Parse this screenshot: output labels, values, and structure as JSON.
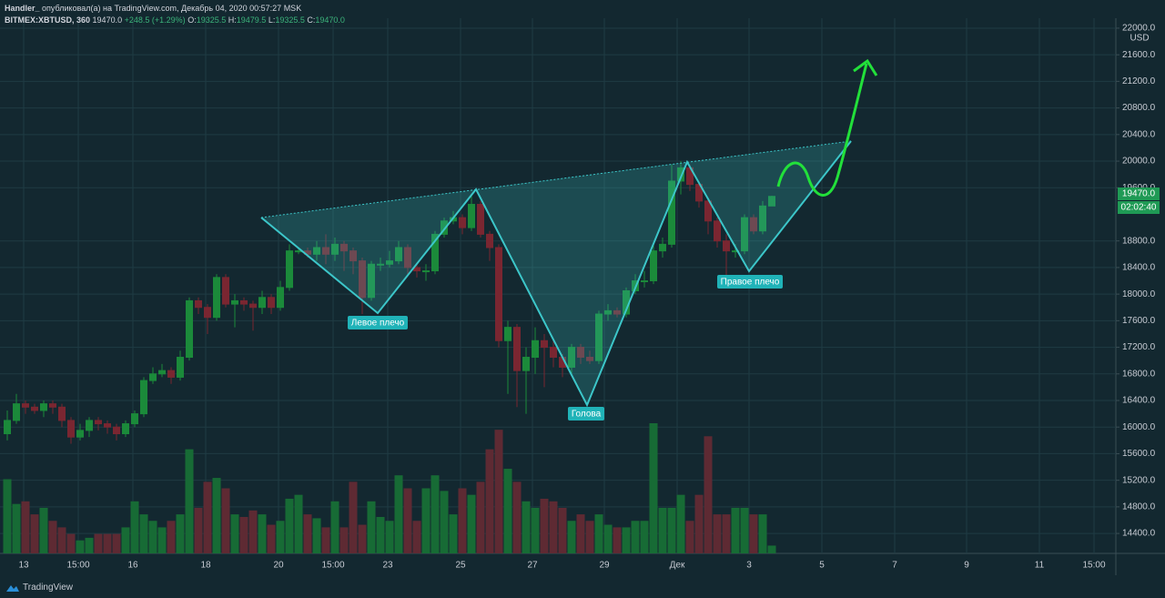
{
  "header": {
    "author": "Handler_",
    "published": "опубликовал(а) на TradingView.com, Декабрь 04, 2020 00:57:27 MSK",
    "symbol": "BITMEX:XBTUSD, 360",
    "last": "19470.0",
    "change": "+248.5 (+1.29%)",
    "ohlc": [
      {
        "label": "O:",
        "value": "19325.5"
      },
      {
        "label": "H:",
        "value": "19479.5"
      },
      {
        "label": "L:",
        "value": "19325.5"
      },
      {
        "label": "C:",
        "value": "19470.0"
      }
    ]
  },
  "footer": {
    "brand": "TradingView"
  },
  "chart_data": {
    "type": "candlestick",
    "currency": "USD",
    "price_tag": "19470.0",
    "countdown": "02:02:40",
    "annotations": [
      "Левое плечо",
      "Голова",
      "Правое плечо"
    ],
    "up_color": "#1b8a3a",
    "down_color": "#7a2631",
    "volume_up_color": "#176b35",
    "volume_down_color": "#5e2a33",
    "ylim": [
      14100,
      22150
    ],
    "xlim": [
      -0.8,
      121.8
    ],
    "yticks": [
      {
        "value": 22000,
        "label": "22000.0"
      },
      {
        "value": 21600,
        "label": "21600.0"
      },
      {
        "value": 21200,
        "label": "21200.0"
      },
      {
        "value": 20800,
        "label": "20800.0"
      },
      {
        "value": 20400,
        "label": "20400.0"
      },
      {
        "value": 20000,
        "label": "20000.0"
      },
      {
        "value": 19600,
        "label": "19600.0"
      },
      {
        "value": 18800,
        "label": "18800.0"
      },
      {
        "value": 18400,
        "label": "18400.0"
      },
      {
        "value": 18000,
        "label": "18000.0"
      },
      {
        "value": 17600,
        "label": "17600.0"
      },
      {
        "value": 17200,
        "label": "17200.0"
      },
      {
        "value": 16800,
        "label": "16800.0"
      },
      {
        "value": 16400,
        "label": "16400.0"
      },
      {
        "value": 16000,
        "label": "16000.0"
      },
      {
        "value": 15600,
        "label": "15600.0"
      },
      {
        "value": 15200,
        "label": "15200.0"
      },
      {
        "value": 14800,
        "label": "14800.0"
      },
      {
        "value": 14400,
        "label": "14400.0"
      }
    ],
    "xticks": [
      {
        "value": 1.8,
        "label": "13"
      },
      {
        "value": 7.8,
        "label": "15:00"
      },
      {
        "value": 13.8,
        "label": "16"
      },
      {
        "value": 21.8,
        "label": "18"
      },
      {
        "value": 29.8,
        "label": "20"
      },
      {
        "value": 35.8,
        "label": "15:00"
      },
      {
        "value": 41.8,
        "label": "23"
      },
      {
        "value": 49.8,
        "label": "25"
      },
      {
        "value": 57.7,
        "label": "27"
      },
      {
        "value": 65.6,
        "label": "29"
      },
      {
        "value": 73.6,
        "label": "Дек"
      },
      {
        "value": 81.5,
        "label": "3"
      },
      {
        "value": 89.5,
        "label": "5"
      },
      {
        "value": 97.5,
        "label": "7"
      },
      {
        "value": 105.4,
        "label": "9"
      },
      {
        "value": 113.4,
        "label": "11"
      },
      {
        "value": 119.4,
        "label": "15:00"
      }
    ],
    "open": [
      15900,
      16100,
      16350,
      16300,
      16250,
      16350,
      16300,
      16100,
      15850,
      15950,
      16100,
      16050,
      16000,
      15900,
      16050,
      16200,
      16700,
      16800,
      16850,
      16750,
      17050,
      17900,
      17800,
      17650,
      18250,
      17850,
      17900,
      17850,
      17800,
      17950,
      17800,
      18100,
      18650,
      18650,
      18600,
      18700,
      18600,
      18750,
      18650,
      18500,
      17950,
      18450,
      18450,
      18500,
      18700,
      18400,
      18350,
      18350,
      18900,
      19100,
      19150,
      19000,
      19350,
      18900,
      18700,
      17300,
      17500,
      16850,
      17050,
      17300,
      17200,
      17050,
      16900,
      17200,
      17050,
      17000,
      17700,
      17750,
      17700,
      18050,
      18200,
      18200,
      18650,
      18750,
      19700,
      19900,
      19650,
      19400,
      19100,
      18800,
      18650,
      18650,
      19150,
      18950,
      19325.5
    ],
    "high": [
      16250,
      16500,
      16400,
      16350,
      16400,
      16400,
      16350,
      16150,
      16050,
      16150,
      16150,
      16100,
      16050,
      16100,
      16250,
      16750,
      16900,
      16950,
      16900,
      17150,
      17950,
      17950,
      17850,
      18300,
      18300,
      18000,
      17950,
      17900,
      18050,
      18000,
      18200,
      18750,
      18700,
      18700,
      18800,
      18900,
      18850,
      18800,
      18700,
      18550,
      18500,
      18550,
      18650,
      18800,
      18750,
      18450,
      18450,
      18950,
      19150,
      19250,
      19200,
      19500,
      19400,
      18950,
      18750,
      17600,
      17550,
      17200,
      17500,
      17400,
      17300,
      17100,
      17250,
      17250,
      17150,
      17750,
      17850,
      17800,
      18100,
      18300,
      18350,
      18750,
      18850,
      19950,
      20000,
      19950,
      19700,
      19450,
      19150,
      18900,
      18750,
      19200,
      19200,
      19400,
      19479.5
    ],
    "low": [
      15800,
      16050,
      16200,
      16200,
      16150,
      16200,
      16000,
      15750,
      15800,
      15850,
      15950,
      15900,
      15800,
      15850,
      16000,
      16150,
      16650,
      16750,
      16650,
      16700,
      17000,
      17700,
      17400,
      17600,
      17800,
      17500,
      17750,
      17450,
      17700,
      17700,
      17750,
      18050,
      18600,
      18550,
      18500,
      18450,
      18500,
      18350,
      18300,
      17700,
      17900,
      18350,
      18400,
      18450,
      18300,
      18250,
      18200,
      18300,
      18850,
      19050,
      18900,
      18950,
      18850,
      18500,
      17200,
      16500,
      16300,
      16200,
      16800,
      16600,
      16900,
      16750,
      16800,
      16950,
      16950,
      16950,
      17600,
      17650,
      17650,
      18000,
      18100,
      18150,
      18550,
      18700,
      19500,
      19550,
      19300,
      18900,
      18700,
      18250,
      18550,
      18600,
      18900,
      18900,
      19325.5
    ],
    "close": [
      16100,
      16350,
      16300,
      16250,
      16350,
      16300,
      16100,
      15850,
      15950,
      16100,
      16050,
      16000,
      15900,
      16050,
      16200,
      16700,
      16800,
      16850,
      16750,
      17050,
      17900,
      17800,
      17650,
      18250,
      17850,
      17900,
      17850,
      17800,
      17950,
      17800,
      18100,
      18650,
      18650,
      18600,
      18700,
      18600,
      18750,
      18650,
      18500,
      17950,
      18450,
      18450,
      18500,
      18700,
      18400,
      18350,
      18350,
      18900,
      19100,
      19150,
      19000,
      19350,
      18900,
      18700,
      17300,
      17500,
      16850,
      17050,
      17300,
      17200,
      17050,
      16900,
      17200,
      17050,
      17000,
      17700,
      17750,
      17700,
      18050,
      18200,
      18200,
      18650,
      18750,
      19700,
      19900,
      19650,
      19400,
      19100,
      18800,
      18650,
      18650,
      19150,
      18950,
      19325.5,
      19470
    ],
    "volume": [
      57,
      38,
      40,
      30,
      35,
      25,
      20,
      15,
      10,
      12,
      15,
      15,
      15,
      20,
      40,
      30,
      25,
      20,
      25,
      30,
      80,
      35,
      55,
      58,
      50,
      30,
      28,
      33,
      30,
      22,
      25,
      42,
      45,
      30,
      27,
      20,
      40,
      20,
      55,
      22,
      40,
      28,
      25,
      60,
      50,
      25,
      50,
      60,
      48,
      30,
      50,
      45,
      55,
      80,
      95,
      65,
      55,
      40,
      35,
      42,
      40,
      35,
      25,
      30,
      25,
      30,
      22,
      20,
      20,
      25,
      25,
      100,
      35,
      35,
      45,
      25,
      45,
      90,
      30,
      30,
      35,
      35,
      30,
      30,
      6
    ]
  }
}
